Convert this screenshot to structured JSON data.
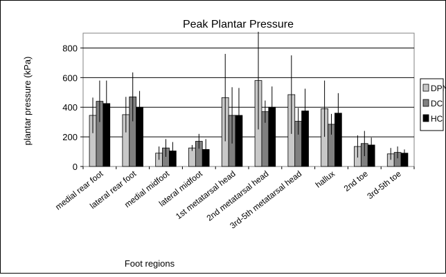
{
  "chart_data": {
    "type": "bar",
    "title": "Peak Plantar Pressure",
    "xlabel": "Foot regions",
    "ylabel": "plantar pressure (kPa)",
    "ylim": [
      0,
      900
    ],
    "yticks": [
      0,
      200,
      400,
      600,
      800
    ],
    "grid": "horizontal major gridlines",
    "legend_position": "right",
    "categories": [
      "medial rear foot",
      "lateral rear foot",
      "medial midfoot",
      "lateral midfoot",
      "1st metatarsal head",
      "2nd metatarsal head",
      "3rd-5th metatarsal head",
      "hallux",
      "2nd toe",
      "3rd-5th toe"
    ],
    "series": [
      {
        "name": "DPN",
        "color": "#c8c8c8",
        "values": [
          345,
          350,
          90,
          125,
          465,
          580,
          485,
          390,
          135,
          85
        ],
        "error": [
          120,
          120,
          45,
          20,
          295,
          330,
          265,
          190,
          75,
          40
        ]
      },
      {
        "name": "DC",
        "color": "#808080",
        "values": [
          440,
          470,
          125,
          170,
          345,
          370,
          305,
          285,
          155,
          95
        ],
        "error": [
          140,
          165,
          60,
          50,
          190,
          75,
          90,
          70,
          85,
          40
        ]
      },
      {
        "name": "HC",
        "color": "#000000",
        "values": [
          425,
          400,
          105,
          115,
          345,
          400,
          375,
          360,
          145,
          90
        ],
        "error": [
          155,
          110,
          60,
          70,
          185,
          140,
          150,
          135,
          50,
          25
        ]
      }
    ]
  }
}
